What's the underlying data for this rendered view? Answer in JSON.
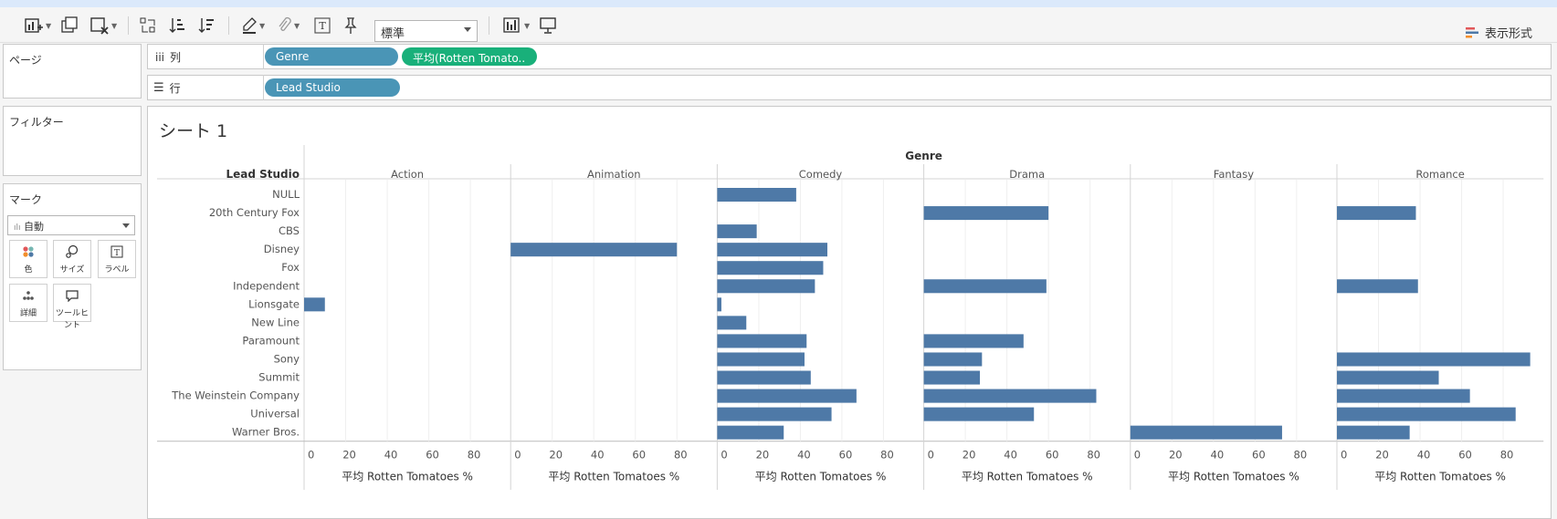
{
  "toolbar": {
    "fit_option": "標準",
    "show_me_label": "表示形式"
  },
  "shelves": {
    "pages_label": "ページ",
    "filters_label": "フィルター",
    "marks_label": "マーク",
    "columns_label": "列",
    "rows_label": "行",
    "columns_pills": [
      "Genre",
      "平均(Rotten Tomato.."
    ],
    "rows_pills": [
      "Lead Studio"
    ]
  },
  "marks": {
    "type": "自動",
    "cards": [
      "色",
      "サイズ",
      "ラベル",
      "詳細",
      "ツールヒント"
    ]
  },
  "sheet": {
    "title": "シート 1"
  },
  "colors": {
    "bar": "#4e79a7",
    "pill_dim": "#4a95b6",
    "pill_measure": "#19b07a"
  },
  "chart_data": {
    "type": "bar",
    "orientation": "horizontal",
    "column_header": "Genre",
    "row_header": "Lead Studio",
    "axis_title": "平均 Rotten Tomatoes %",
    "ticks": [
      0,
      20,
      40,
      60,
      80
    ],
    "xlim": [
      0,
      95
    ],
    "genres": [
      "Action",
      "Animation",
      "Comedy",
      "Drama",
      "Fantasy",
      "Romance"
    ],
    "studios": [
      "NULL",
      "20th Century Fox",
      "CBS",
      "Disney",
      "Fox",
      "Independent",
      "Lionsgate",
      "New Line",
      "Paramount",
      "Sony",
      "Summit",
      "The Weinstein Company",
      "Universal",
      "Warner Bros."
    ],
    "values": {
      "Action": [
        null,
        null,
        null,
        null,
        null,
        null,
        10,
        null,
        null,
        null,
        null,
        null,
        null,
        null
      ],
      "Animation": [
        null,
        null,
        null,
        80,
        null,
        null,
        null,
        null,
        null,
        null,
        null,
        null,
        null,
        null
      ],
      "Comedy": [
        38,
        null,
        19,
        53,
        51,
        47,
        2,
        14,
        43,
        42,
        45,
        67,
        55,
        32
      ],
      "Drama": [
        null,
        60,
        null,
        null,
        null,
        59,
        null,
        null,
        48,
        28,
        27,
        83,
        53,
        null
      ],
      "Fantasy": [
        null,
        null,
        null,
        null,
        null,
        null,
        null,
        null,
        null,
        null,
        null,
        null,
        null,
        73
      ],
      "Romance": [
        null,
        38,
        null,
        null,
        null,
        39,
        null,
        null,
        null,
        93,
        49,
        64,
        86,
        35
      ]
    }
  }
}
